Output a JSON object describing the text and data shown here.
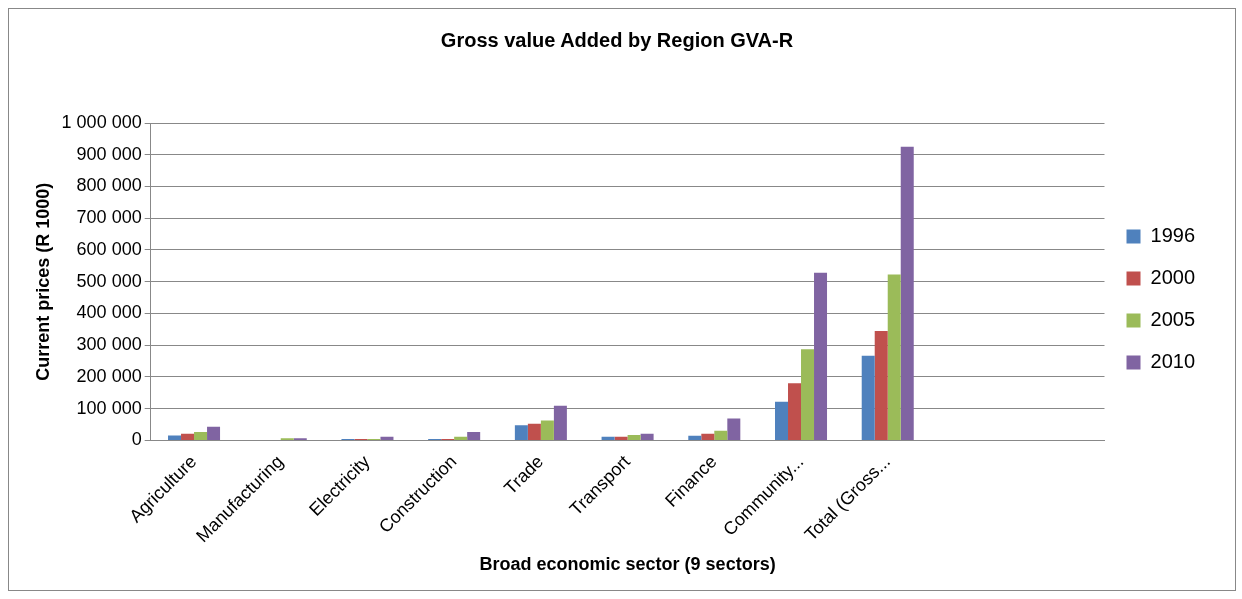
{
  "chart_data": {
    "type": "bar",
    "title": "Gross value Added by Region GVA-R",
    "xlabel": "Broad economic sector (9 sectors)",
    "ylabel": "Current prices (R 1000)",
    "categories": [
      "Agriculture",
      "Manufacturing",
      "Electricity",
      "Construction",
      "Trade",
      "Transport",
      "Finance",
      "Community...",
      "Total (Gross...",
      null,
      null
    ],
    "series": [
      {
        "name": "1996",
        "color": "#4f81bd",
        "values": [
          16000,
          null,
          5000,
          5000,
          48000,
          12000,
          15000,
          122000,
          267000,
          null,
          null
        ]
      },
      {
        "name": "2000",
        "color": "#c0504d",
        "values": [
          21000,
          null,
          5000,
          5000,
          53000,
          12000,
          21000,
          180000,
          345000,
          null,
          null
        ]
      },
      {
        "name": "2005",
        "color": "#9bbb59",
        "values": [
          27000,
          7000,
          5000,
          12000,
          63000,
          17000,
          31000,
          287000,
          523000,
          null,
          null
        ]
      },
      {
        "name": "2010",
        "color": "#8064a2",
        "values": [
          43000,
          7000,
          12000,
          27000,
          109000,
          21000,
          69000,
          528000,
          925000,
          null,
          null
        ]
      }
    ],
    "ylim": [
      0,
      1000000
    ],
    "yticks": [
      {
        "value": 0,
        "label": "0"
      },
      {
        "value": 100000,
        "label": "100 000"
      },
      {
        "value": 200000,
        "label": "200 000"
      },
      {
        "value": 300000,
        "label": "300 000"
      },
      {
        "value": 400000,
        "label": "400 000"
      },
      {
        "value": 500000,
        "label": "500 000"
      },
      {
        "value": 600000,
        "label": "600 000"
      },
      {
        "value": 700000,
        "label": "700 000"
      },
      {
        "value": 800000,
        "label": "800 000"
      },
      {
        "value": 900000,
        "label": "900 000"
      },
      {
        "value": 1000000,
        "label": "1 000 000"
      }
    ],
    "grid": "y",
    "legend": "right"
  }
}
